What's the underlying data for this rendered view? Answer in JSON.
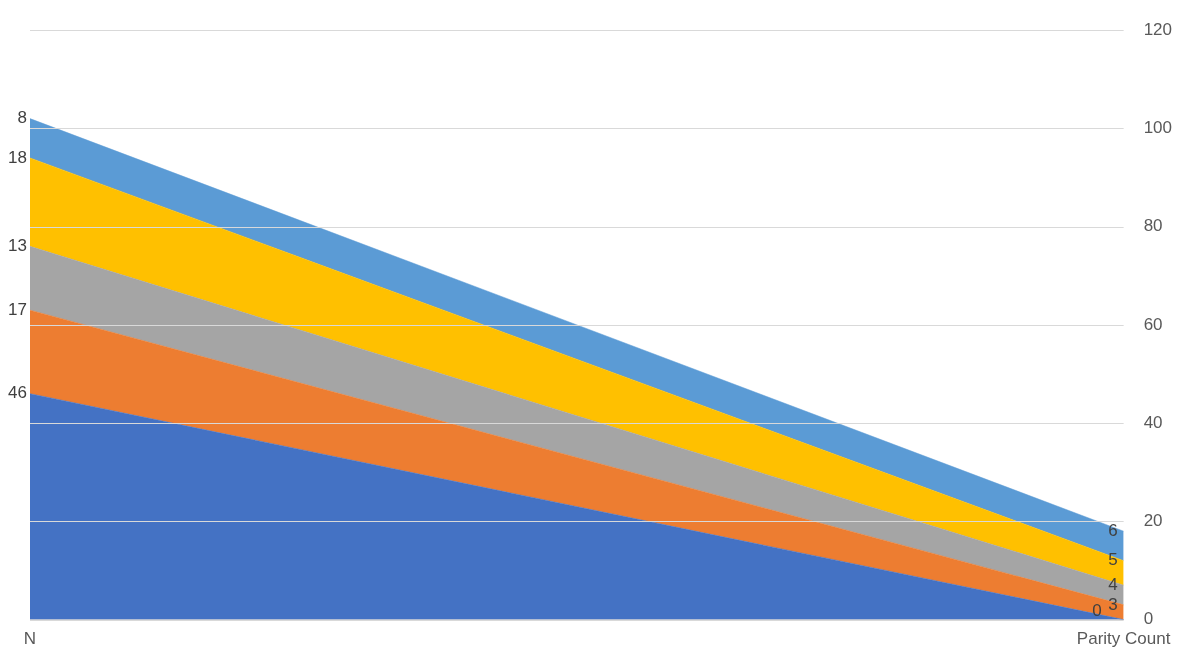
{
  "chart_data": {
    "type": "area",
    "stacked": true,
    "categories": [
      "N",
      "Parity Count"
    ],
    "series": [
      {
        "color": "#4472c4",
        "values": [
          46,
          0
        ]
      },
      {
        "color": "#ed7d31",
        "values": [
          17,
          3
        ]
      },
      {
        "color": "#a5a5a5",
        "values": [
          13,
          4
        ]
      },
      {
        "color": "#ffc000",
        "values": [
          18,
          5
        ]
      },
      {
        "color": "#5b9bd5",
        "values": [
          8,
          6
        ]
      }
    ],
    "ylim": [
      0,
      120
    ],
    "yticks": [
      0,
      20,
      40,
      60,
      80,
      100,
      120
    ],
    "grid": "y",
    "legend": false,
    "data_labels": true
  }
}
